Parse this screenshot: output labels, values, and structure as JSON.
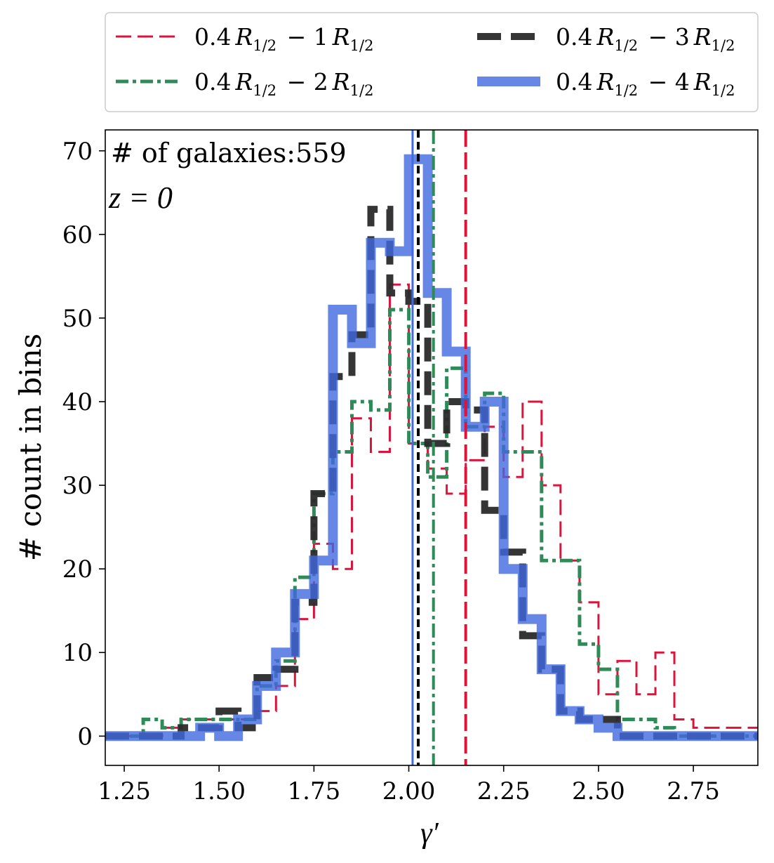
{
  "chart_data": {
    "type": "histogram-step",
    "xlabel": "γ′",
    "ylabel": "# count in bins",
    "xlim": [
      1.2,
      2.92
    ],
    "ylim": [
      -3.5,
      72.5
    ],
    "xticks": [
      1.25,
      1.5,
      1.75,
      2.0,
      2.25,
      2.5,
      2.75
    ],
    "xtick_labels": [
      "1.25",
      "1.50",
      "1.75",
      "2.00",
      "2.25",
      "2.50",
      "2.75"
    ],
    "yticks": [
      0,
      10,
      20,
      30,
      40,
      50,
      60,
      70
    ],
    "ytick_labels": [
      "0",
      "10",
      "20",
      "30",
      "40",
      "50",
      "60",
      "70"
    ],
    "annotation_count": "# of galaxies:559",
    "annotation_z": "z = 0",
    "legend_position": "above plot",
    "legend_columns": 2,
    "series": [
      {
        "name": "0.4 R1/2 − 1 R1/2",
        "legend_parts": [
          "0.4",
          "R",
          "1/2",
          " − 1",
          "R",
          "1/2"
        ],
        "color": "#dc143c",
        "style": "dashed",
        "median": 2.15,
        "edges": [
          1.2,
          1.3,
          1.35,
          1.4,
          1.45,
          1.5,
          1.55,
          1.6,
          1.65,
          1.7,
          1.75,
          1.8,
          1.85,
          1.9,
          1.95,
          2.0,
          2.05,
          2.1,
          2.15,
          2.2,
          2.25,
          2.3,
          2.35,
          2.4,
          2.45,
          2.5,
          2.55,
          2.6,
          2.65,
          2.7,
          2.75,
          2.8,
          2.85,
          2.92
        ],
        "counts": [
          0,
          0,
          1,
          2,
          2,
          2,
          2,
          3,
          6,
          14,
          23,
          20,
          38,
          34,
          54,
          35,
          32,
          29,
          33,
          37,
          31,
          40,
          30,
          21,
          16,
          5,
          9,
          5,
          10,
          2,
          1,
          1,
          1
        ]
      },
      {
        "name": "0.4 R1/2 − 2 R1/2",
        "legend_parts": [
          "0.4",
          "R",
          "1/2",
          " − 2",
          "R",
          "1/2"
        ],
        "color": "#2e8b57",
        "style": "dashdot",
        "median": 2.065,
        "edges": [
          1.2,
          1.3,
          1.35,
          1.4,
          1.45,
          1.5,
          1.55,
          1.6,
          1.65,
          1.7,
          1.75,
          1.8,
          1.85,
          1.9,
          1.95,
          2.0,
          2.05,
          2.1,
          2.15,
          2.2,
          2.25,
          2.3,
          2.35,
          2.4,
          2.45,
          2.5,
          2.55,
          2.6,
          2.65,
          2.7,
          2.92
        ],
        "counts": [
          0,
          2,
          1,
          2,
          2,
          2,
          2,
          6,
          9,
          19,
          29,
          34,
          40,
          39,
          51,
          35,
          31,
          44,
          37,
          41,
          34,
          34,
          21,
          21,
          11,
          8,
          2,
          2,
          1,
          0
        ]
      },
      {
        "name": "0.4 R1/2 − 3 R1/2",
        "legend_parts": [
          "0.4",
          "R",
          "1/2",
          " − 3",
          "R",
          "1/2"
        ],
        "color": "#2a2a2a",
        "style": "dashed-thick",
        "median": 2.025,
        "edges": [
          1.2,
          1.3,
          1.35,
          1.4,
          1.45,
          1.5,
          1.55,
          1.6,
          1.65,
          1.7,
          1.75,
          1.8,
          1.85,
          1.9,
          1.95,
          2.0,
          2.05,
          2.1,
          2.15,
          2.2,
          2.25,
          2.3,
          2.35,
          2.4,
          2.45,
          2.5,
          2.55,
          2.6,
          2.92
        ],
        "counts": [
          0,
          0,
          0,
          1,
          1,
          3,
          1,
          7,
          8,
          16,
          29,
          43,
          48,
          63,
          53,
          52,
          35,
          40,
          39,
          27,
          22,
          12,
          8,
          3,
          2,
          2,
          0,
          0
        ]
      },
      {
        "name": "0.4 R1/2 − 4 R1/2",
        "legend_parts": [
          "0.4",
          "R",
          "1/2",
          " − 4",
          "R",
          "1/2"
        ],
        "color": "#4169e1",
        "style": "solid-thick",
        "median": 2.01,
        "edges": [
          1.2,
          1.3,
          1.35,
          1.4,
          1.45,
          1.5,
          1.55,
          1.6,
          1.65,
          1.7,
          1.75,
          1.8,
          1.85,
          1.9,
          1.95,
          2.0,
          2.05,
          2.1,
          2.15,
          2.2,
          2.25,
          2.3,
          2.35,
          2.4,
          2.45,
          2.5,
          2.55,
          2.6,
          2.92
        ],
        "counts": [
          0,
          0,
          0,
          0,
          1,
          0,
          2,
          6,
          10,
          17,
          21,
          51,
          47,
          59,
          58,
          69,
          53,
          46,
          37,
          40,
          20,
          14,
          8,
          3,
          2,
          1,
          0,
          0
        ]
      }
    ]
  }
}
